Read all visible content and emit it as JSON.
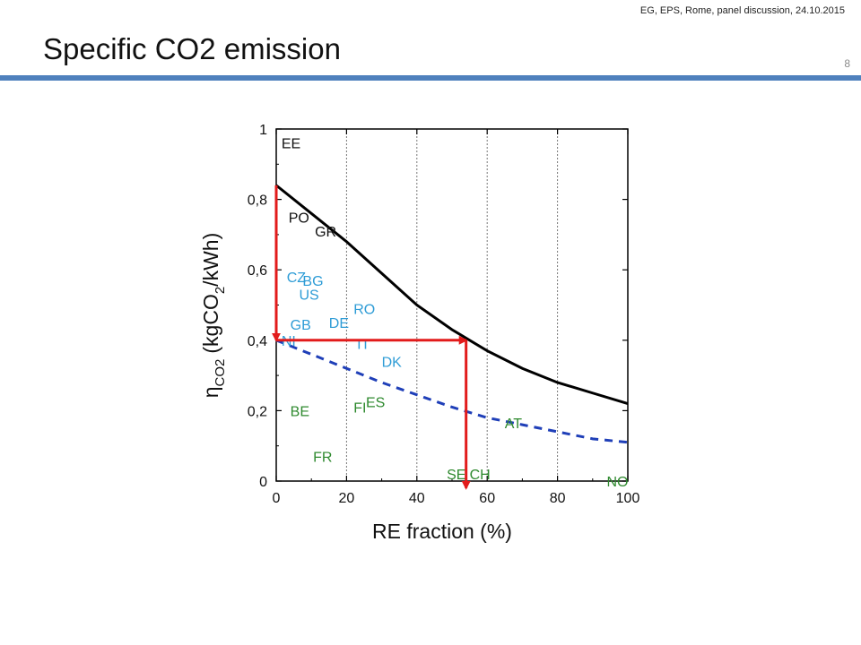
{
  "header": {
    "note": "EG, EPS, Rome, panel discussion, 24.10.2015",
    "title": "Specific CO2 emission",
    "page_number": "8"
  },
  "colors": {
    "title_rule": "#4f81bd",
    "blue_labels": "#2e9cd6",
    "green_labels": "#2f8a2f",
    "dashed_curve": "#1f3fb8",
    "arrows": "#e21b1b",
    "solid_curve": "#000000"
  },
  "chart_data": {
    "type": "line",
    "xlabel": "RE fraction (%)",
    "ylabel": {
      "eta": "η",
      "sub": "CO2",
      "paren_open": "(kgCO",
      "sub2": "2",
      "paren_close": "/kWh)"
    },
    "xlim": [
      0,
      100
    ],
    "ylim": [
      0,
      1
    ],
    "x_ticks": [
      0,
      20,
      40,
      60,
      80,
      100
    ],
    "x_tick_labels": [
      "0",
      "20",
      "40",
      "60",
      "80",
      "100"
    ],
    "y_ticks": [
      0,
      0.2,
      0.4,
      0.6,
      0.8,
      1
    ],
    "y_tick_labels": [
      "0",
      "0,2",
      "0,4",
      "0,6",
      "0,8",
      "1"
    ],
    "grid": "vertical dotted at 20, 40, 60, 80",
    "series": [
      {
        "style": "solid",
        "color": "#000000",
        "x": [
          0,
          10,
          20,
          30,
          40,
          50,
          60,
          70,
          80,
          90,
          100
        ],
        "y": [
          0.84,
          0.76,
          0.68,
          0.59,
          0.5,
          0.43,
          0.37,
          0.32,
          0.28,
          0.25,
          0.22
        ]
      },
      {
        "style": "dashed",
        "color": "#1f3fb8",
        "x": [
          0,
          10,
          20,
          30,
          40,
          50,
          60,
          70,
          80,
          90,
          100
        ],
        "y": [
          0.4,
          0.36,
          0.32,
          0.28,
          0.245,
          0.21,
          0.18,
          0.16,
          0.14,
          0.12,
          0.11
        ]
      }
    ],
    "country_labels": [
      {
        "text": "EE",
        "x": 1.5,
        "y": 0.96,
        "group": "black"
      },
      {
        "text": "PO",
        "x": 3.5,
        "y": 0.75,
        "group": "black"
      },
      {
        "text": "GR",
        "x": 11,
        "y": 0.71,
        "group": "black"
      },
      {
        "text": "CZ",
        "x": 3,
        "y": 0.58,
        "group": "blue"
      },
      {
        "text": "BG",
        "x": 7.5,
        "y": 0.57,
        "group": "blue"
      },
      {
        "text": "US",
        "x": 6.5,
        "y": 0.53,
        "group": "blue"
      },
      {
        "text": "RO",
        "x": 22,
        "y": 0.49,
        "group": "blue"
      },
      {
        "text": "DE",
        "x": 15,
        "y": 0.45,
        "group": "blue"
      },
      {
        "text": "GB",
        "x": 4,
        "y": 0.445,
        "group": "blue"
      },
      {
        "text": "NI",
        "x": 1.5,
        "y": 0.4,
        "group": "blue"
      },
      {
        "text": "IT",
        "x": 23,
        "y": 0.39,
        "group": "blue"
      },
      {
        "text": "DK",
        "x": 30,
        "y": 0.34,
        "group": "blue"
      },
      {
        "text": "FI",
        "x": 22,
        "y": 0.21,
        "group": "green"
      },
      {
        "text": "ES",
        "x": 25.5,
        "y": 0.225,
        "group": "green"
      },
      {
        "text": "BE",
        "x": 4,
        "y": 0.2,
        "group": "green"
      },
      {
        "text": "FR",
        "x": 10.5,
        "y": 0.07,
        "group": "green"
      },
      {
        "text": "AT",
        "x": 65,
        "y": 0.165,
        "group": "green"
      },
      {
        "text": "SE",
        "x": 48.5,
        "y": 0.02,
        "group": "green"
      },
      {
        "text": "CH",
        "x": 55,
        "y": 0.02,
        "group": "green"
      },
      {
        "text": "NO",
        "x": 94,
        "y": 0.0,
        "group": "green"
      }
    ],
    "arrows": [
      {
        "from": [
          0,
          0.84
        ],
        "to": [
          0,
          0.4
        ]
      },
      {
        "from": [
          0,
          0.4
        ],
        "to": [
          54,
          0.4
        ]
      },
      {
        "from": [
          54,
          0.4
        ],
        "to": [
          54,
          -0.02
        ]
      }
    ]
  }
}
